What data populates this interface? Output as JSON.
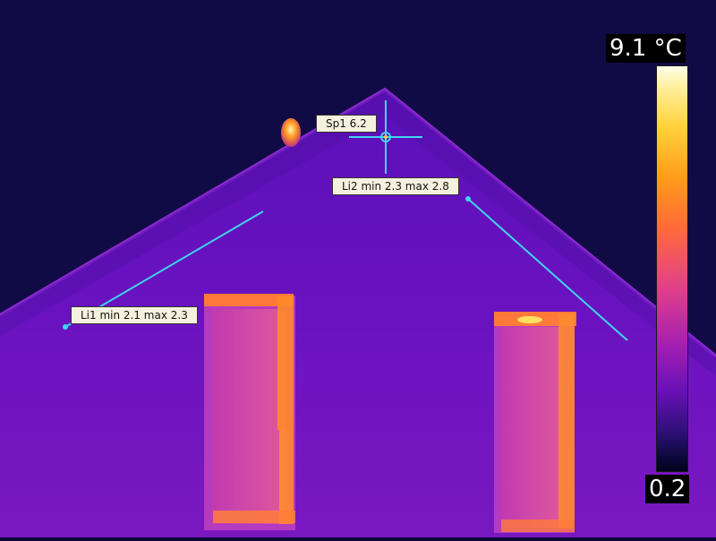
{
  "thermal": {
    "scale_max": "9.1 °C",
    "scale_min": "0.2"
  },
  "measurements": {
    "spot1": "Sp1 6.2",
    "line1": "Li1 min 2.1 max 2.3",
    "line2": "Li2 min 2.3 max 2.8"
  },
  "colors": {
    "marker": "#3ed6ee",
    "sky": "#0d0a3a",
    "roof": "#6a10b8"
  }
}
